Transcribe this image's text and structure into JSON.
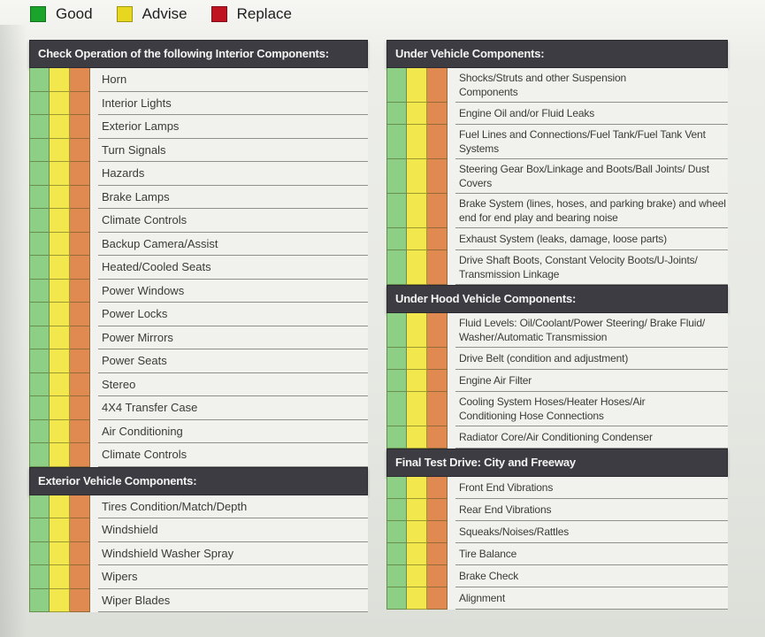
{
  "legend": {
    "items": [
      {
        "label": "Good",
        "color": "#1aa42c"
      },
      {
        "label": "Advise",
        "color": "#e8d71f"
      },
      {
        "label": "Replace",
        "color": "#bf1322"
      }
    ]
  },
  "colors": {
    "header_bg": "#3d3c43",
    "row_bg": "#f1f2ee",
    "rating": {
      "good": "#8ccf85",
      "advise": "#f2e74c",
      "replace": "#e08a52"
    }
  },
  "columns": {
    "left": {
      "sections": [
        {
          "title": "Check Operation of the following Interior Components:",
          "items": [
            "Horn",
            "Interior Lights",
            "Exterior Lamps",
            "Turn Signals",
            "Hazards",
            "Brake Lamps",
            "Climate Controls",
            "Backup Camera/Assist",
            "Heated/Cooled Seats",
            "Power Windows",
            "Power Locks",
            "Power Mirrors",
            "Power Seats",
            "Stereo",
            "4X4 Transfer Case",
            "Air Conditioning",
            "Climate Controls"
          ]
        },
        {
          "title": "Exterior Vehicle Components:",
          "items": [
            "Tires Condition/Match/Depth",
            "Windshield",
            "Windshield Washer Spray",
            "Wipers",
            "Wiper Blades"
          ]
        }
      ]
    },
    "right": {
      "sections": [
        {
          "title": "Under Vehicle Components:",
          "items": [
            [
              "Shocks/Struts and other Suspension",
              "Components"
            ],
            "Engine Oil and/or Fluid Leaks",
            [
              "Fuel Lines and Connections/Fuel Tank/Fuel Tank Vent",
              "Systems"
            ],
            [
              "Steering Gear Box/Linkage and Boots/Ball Joints/ Dust",
              "Covers"
            ],
            [
              "Brake System (lines, hoses, and parking brake) and wheel",
              "end for end play and bearing noise"
            ],
            "Exhaust System (leaks, damage, loose parts)",
            [
              "Drive Shaft Boots, Constant Velocity Boots/U-Joints/",
              "Transmission Linkage"
            ]
          ]
        },
        {
          "title": "Under Hood Vehicle Components:",
          "items": [
            [
              "Fluid Levels: Oil/Coolant/Power Steering/ Brake Fluid/",
              "Washer/Automatic Transmission"
            ],
            "Drive Belt (condition and adjustment)",
            "Engine Air Filter",
            [
              "Cooling System Hoses/Heater Hoses/Air",
              "Conditioning Hose Connections"
            ],
            "Radiator Core/Air Conditioning Condenser"
          ]
        },
        {
          "title": "Final Test Drive: City and Freeway",
          "items": [
            "Front End Vibrations",
            "Rear End Vibrations",
            "Squeaks/Noises/Rattles",
            "Tire Balance",
            "Brake Check",
            "Alignment"
          ]
        }
      ]
    }
  }
}
